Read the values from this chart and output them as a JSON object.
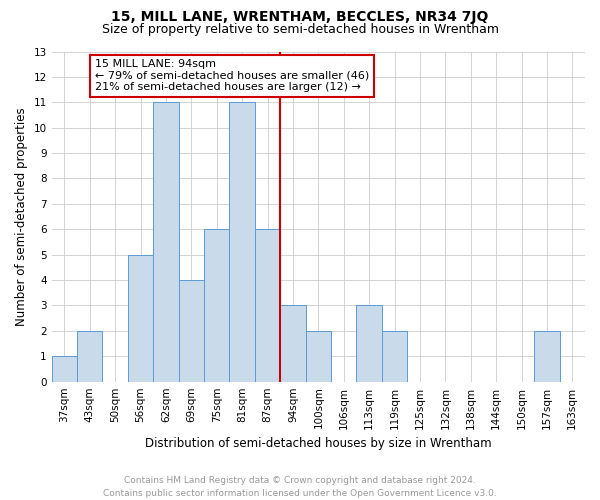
{
  "title": "15, MILL LANE, WRENTHAM, BECCLES, NR34 7JQ",
  "subtitle": "Size of property relative to semi-detached houses in Wrentham",
  "xlabel": "Distribution of semi-detached houses by size in Wrentham",
  "ylabel": "Number of semi-detached properties",
  "categories": [
    "37sqm",
    "43sqm",
    "50sqm",
    "56sqm",
    "62sqm",
    "69sqm",
    "75sqm",
    "81sqm",
    "87sqm",
    "94sqm",
    "100sqm",
    "106sqm",
    "113sqm",
    "119sqm",
    "125sqm",
    "132sqm",
    "138sqm",
    "144sqm",
    "150sqm",
    "157sqm",
    "163sqm"
  ],
  "values": [
    1,
    2,
    0,
    5,
    11,
    4,
    6,
    11,
    6,
    3,
    2,
    0,
    3,
    2,
    0,
    0,
    0,
    0,
    0,
    2,
    0
  ],
  "bar_color": "#c9daea",
  "bar_edge_color": "#5b9bd5",
  "property_line_index": 9,
  "property_label": "15 MILL LANE: 94sqm",
  "annotation_line1": "← 79% of semi-detached houses are smaller (46)",
  "annotation_line2": "21% of semi-detached houses are larger (12) →",
  "annotation_box_color": "#ffffff",
  "annotation_box_edge": "#cc0000",
  "property_line_color": "#cc0000",
  "ylim": [
    0,
    13
  ],
  "yticks": [
    0,
    1,
    2,
    3,
    4,
    5,
    6,
    7,
    8,
    9,
    10,
    11,
    12,
    13
  ],
  "footer_line1": "Contains HM Land Registry data © Crown copyright and database right 2024.",
  "footer_line2": "Contains public sector information licensed under the Open Government Licence v3.0.",
  "background_color": "#ffffff",
  "grid_color": "#cccccc",
  "title_fontsize": 10,
  "subtitle_fontsize": 9,
  "axis_label_fontsize": 8.5,
  "tick_fontsize": 7.5,
  "annotation_fontsize": 8,
  "footer_fontsize": 6.5
}
